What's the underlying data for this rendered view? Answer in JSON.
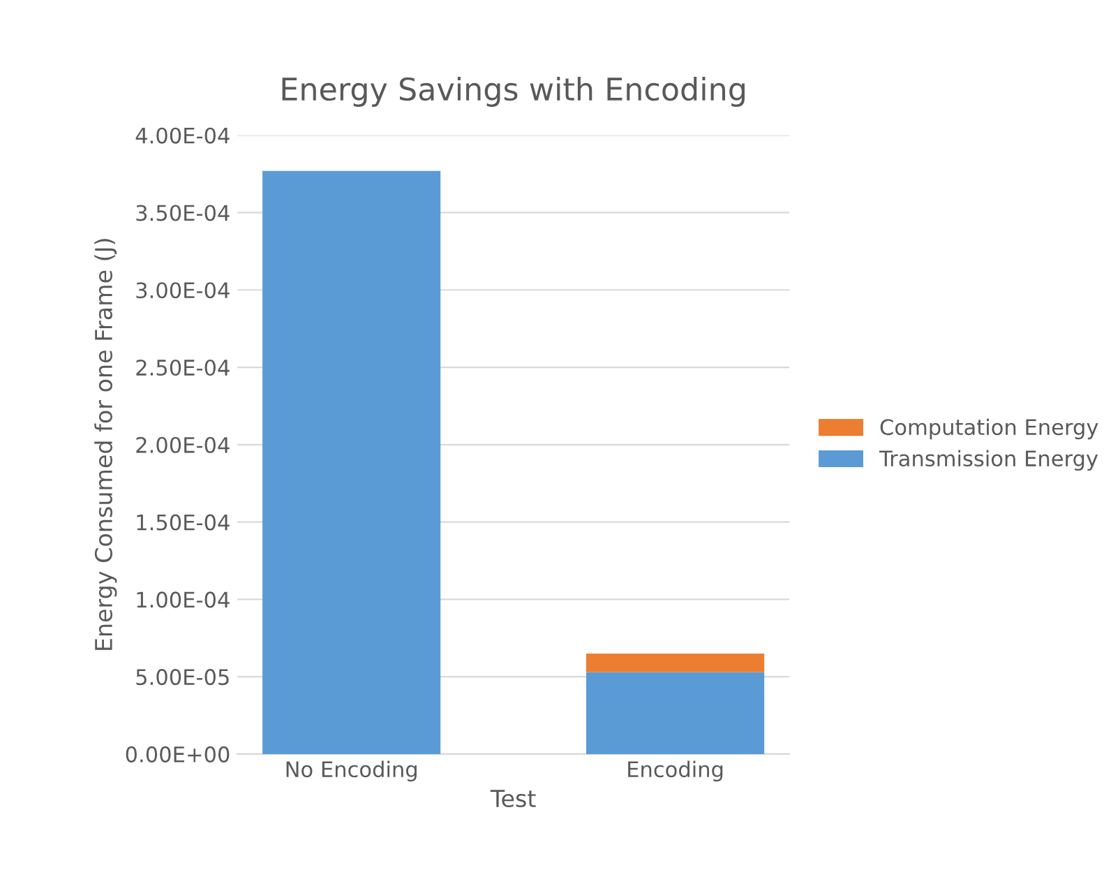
{
  "chart_data": {
    "type": "bar",
    "title": "Energy Savings with Encoding",
    "xlabel": "Test",
    "ylabel": "Energy Consumed for one Frame (J)",
    "categories": [
      "No Encoding",
      "Encoding"
    ],
    "stacked": true,
    "series": [
      {
        "name": "Transmission Energy",
        "color": "#5b9bd5",
        "values": [
          0.000377,
          5.3e-05
        ]
      },
      {
        "name": "Computation Energy",
        "color": "#ed7d31",
        "values": [
          0,
          1.2e-05
        ]
      }
    ],
    "ylim": [
      0,
      0.0004
    ],
    "yticks": [
      {
        "value": 0,
        "label": "0.00E+00"
      },
      {
        "value": 5e-05,
        "label": "5.00E-05"
      },
      {
        "value": 0.0001,
        "label": "1.00E-04"
      },
      {
        "value": 0.00015,
        "label": "1.50E-04"
      },
      {
        "value": 0.0002,
        "label": "2.00E-04"
      },
      {
        "value": 0.00025,
        "label": "2.50E-04"
      },
      {
        "value": 0.0003,
        "label": "3.00E-04"
      },
      {
        "value": 0.00035,
        "label": "3.50E-04"
      },
      {
        "value": 0.0004,
        "label": "4.00E-04"
      }
    ],
    "grid": "y",
    "legend": "right"
  }
}
